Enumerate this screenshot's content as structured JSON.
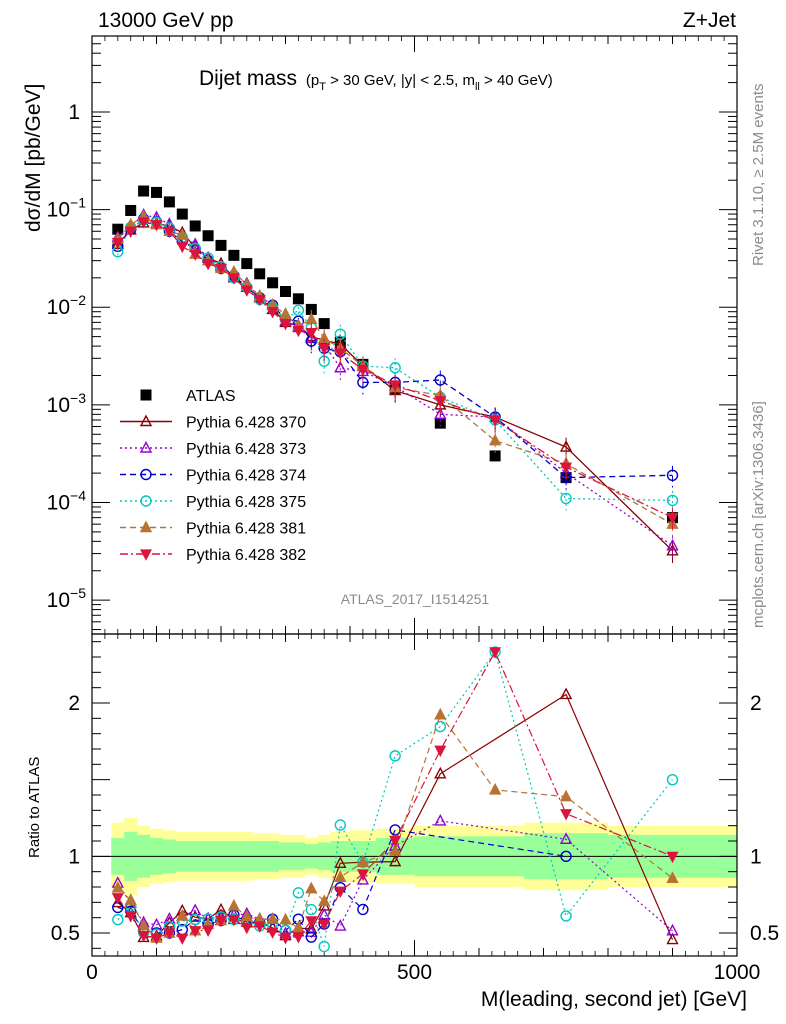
{
  "header": {
    "left": "13000 GeV pp",
    "right": "Z+Jet"
  },
  "side": {
    "rivet": "Rivet 3.1.10, ≥ 2.5M events",
    "mcplots": "mcplots.cern.ch [arXiv:1306.3436]"
  },
  "chart_data": {
    "type": "scatter",
    "title": "Dijet mass",
    "title_cuts_parts": {
      "open": "(p",
      "pt_sub": "T",
      "mid": " > 30 GeV, |y| < 2.5, m",
      "m_sub": "ll",
      "close": " > 40 GeV)"
    },
    "analysis_id": "ATLAS_2017_I1514251",
    "xlabel": "M(leading, second jet) [GeV]",
    "ylabel": "dσ/dM [pb/GeV]",
    "ratio_ylabel": "Ratio to ATLAS",
    "xlim": [
      0,
      1000
    ],
    "ylim": [
      4.5e-06,
      6
    ],
    "yscale": "log",
    "ratio_ylim": [
      0.35,
      2.45
    ],
    "x_ticks": [
      0,
      500,
      1000
    ],
    "x_tick_labels": [
      "0",
      "500",
      "1000"
    ],
    "y_ticks": [
      1e-05,
      0.0001,
      0.001,
      0.01,
      0.1,
      1
    ],
    "y_tick_labels": [
      {
        "base": "10",
        "exp": "−5"
      },
      {
        "base": "10",
        "exp": "−4"
      },
      {
        "base": "10",
        "exp": "−3"
      },
      {
        "base": "10",
        "exp": "−2"
      },
      {
        "base": "10",
        "exp": "−1"
      },
      {
        "base": "1",
        "exp": ""
      }
    ],
    "ratio_ticks": [
      0.5,
      1,
      2
    ],
    "ratio_tick_labels": [
      "0.5",
      "1",
      "2"
    ],
    "legend_position": "lower-left",
    "bins": [
      30,
      50,
      70,
      90,
      110,
      130,
      150,
      170,
      190,
      210,
      230,
      250,
      270,
      290,
      310,
      330,
      350,
      370,
      400,
      440,
      500,
      580,
      670,
      800,
      1000
    ],
    "series": [
      {
        "name": "ATLAS",
        "color": "#000000",
        "marker": "square",
        "line": "none",
        "x": [
          40,
          60,
          80,
          100,
          120,
          140,
          160,
          180,
          200,
          220,
          240,
          260,
          280,
          300,
          320,
          340,
          360,
          385,
          420,
          470,
          540,
          625,
          735,
          900
        ],
        "y": [
          0.063,
          0.098,
          0.155,
          0.15,
          0.12,
          0.09,
          0.068,
          0.054,
          0.043,
          0.034,
          0.028,
          0.022,
          0.0178,
          0.0145,
          0.0122,
          0.0095,
          0.0068,
          0.0044,
          0.0026,
          0.00145,
          0.00065,
          0.0003,
          0.00018,
          7e-05
        ],
        "band_inner": [
          0.12,
          0.16,
          0.14,
          0.12,
          0.11,
          0.1,
          0.1,
          0.1,
          0.1,
          0.1,
          0.1,
          0.1,
          0.1,
          0.09,
          0.09,
          0.08,
          0.09,
          0.1,
          0.1,
          0.12,
          0.13,
          0.13,
          0.15,
          0.14
        ],
        "band_outer": [
          0.22,
          0.25,
          0.2,
          0.18,
          0.17,
          0.16,
          0.16,
          0.16,
          0.16,
          0.16,
          0.16,
          0.15,
          0.15,
          0.14,
          0.14,
          0.12,
          0.14,
          0.16,
          0.17,
          0.18,
          0.2,
          0.2,
          0.22,
          0.2
        ]
      },
      {
        "name": "Pythia 6.428 370",
        "color": "#8b0000",
        "marker": "triangle-open",
        "line": "solid",
        "x": [
          40,
          60,
          80,
          100,
          120,
          140,
          160,
          180,
          200,
          220,
          240,
          260,
          280,
          300,
          320,
          340,
          360,
          385,
          420,
          470,
          540,
          625,
          735,
          900
        ],
        "y": [
          0.044,
          0.062,
          0.073,
          0.072,
          0.068,
          0.058,
          0.041,
          0.032,
          0.028,
          0.02,
          0.016,
          0.0125,
          0.0095,
          0.007,
          0.0065,
          0.005,
          0.0046,
          0.0042,
          0.0025,
          0.0014,
          0.001,
          0.00075,
          0.00037,
          3.2e-05
        ]
      },
      {
        "name": "Pythia 6.428 373",
        "color": "#9400d3",
        "marker": "triangle-open",
        "line": "dotted",
        "x": [
          40,
          60,
          80,
          100,
          120,
          140,
          160,
          180,
          200,
          220,
          240,
          260,
          280,
          300,
          320,
          340,
          360,
          385,
          420,
          470,
          540,
          625,
          735,
          900
        ],
        "y": [
          0.052,
          0.068,
          0.088,
          0.083,
          0.071,
          0.055,
          0.044,
          0.032,
          0.026,
          0.021,
          0.0175,
          0.013,
          0.0105,
          0.0072,
          0.0062,
          0.0048,
          0.0042,
          0.0024,
          0.0022,
          0.00155,
          0.0008,
          0.00075,
          0.0002,
          3.6e-05
        ]
      },
      {
        "name": "Pythia 6.428 374",
        "color": "#0000cd",
        "marker": "circle-open",
        "line": "dashed",
        "x": [
          40,
          60,
          80,
          100,
          120,
          140,
          160,
          180,
          200,
          220,
          240,
          260,
          280,
          300,
          320,
          340,
          360,
          385,
          420,
          470,
          540,
          625,
          735,
          900
        ],
        "y": [
          0.042,
          0.063,
          0.08,
          0.075,
          0.06,
          0.047,
          0.04,
          0.03,
          0.025,
          0.021,
          0.016,
          0.0125,
          0.0105,
          0.0075,
          0.0072,
          0.0045,
          0.0038,
          0.0035,
          0.0017,
          0.0017,
          0.0018,
          0.00075,
          0.00018,
          0.00019
        ]
      },
      {
        "name": "Pythia 6.428 375",
        "color": "#00c8c0",
        "marker": "circle-open",
        "line": "dotted",
        "x": [
          40,
          60,
          80,
          100,
          120,
          140,
          160,
          180,
          200,
          220,
          240,
          260,
          280,
          300,
          320,
          340,
          360,
          385,
          420,
          470,
          540,
          625,
          735,
          900
        ],
        "y": [
          0.037,
          0.066,
          0.078,
          0.074,
          0.065,
          0.052,
          0.04,
          0.032,
          0.026,
          0.02,
          0.016,
          0.012,
          0.01,
          0.0075,
          0.0093,
          0.0062,
          0.0028,
          0.0053,
          0.0025,
          0.0024,
          0.0012,
          0.0007,
          0.00011,
          0.000105
        ]
      },
      {
        "name": "Pythia 6.428 381",
        "color": "#b87333",
        "marker": "triangle-filled",
        "line": "dashed",
        "x": [
          40,
          60,
          80,
          100,
          120,
          140,
          160,
          180,
          200,
          220,
          240,
          260,
          280,
          300,
          320,
          340,
          360,
          385,
          420,
          470,
          540,
          625,
          735,
          900
        ],
        "y": [
          0.05,
          0.07,
          0.085,
          0.07,
          0.06,
          0.055,
          0.035,
          0.03,
          0.025,
          0.023,
          0.017,
          0.013,
          0.0105,
          0.0085,
          0.0065,
          0.0075,
          0.0048,
          0.0038,
          0.0025,
          0.0015,
          0.00125,
          0.00043,
          0.00025,
          6e-05
        ]
      },
      {
        "name": "Pythia 6.428 382",
        "color": "#dc143c",
        "marker": "triangle-down-filled",
        "line": "dashdot",
        "x": [
          40,
          60,
          80,
          100,
          120,
          140,
          160,
          180,
          200,
          220,
          240,
          260,
          280,
          300,
          320,
          340,
          360,
          385,
          420,
          470,
          540,
          625,
          735,
          900
        ],
        "y": [
          0.046,
          0.06,
          0.075,
          0.07,
          0.06,
          0.042,
          0.035,
          0.028,
          0.025,
          0.02,
          0.015,
          0.012,
          0.009,
          0.0068,
          0.0058,
          0.0055,
          0.0038,
          0.0034,
          0.0023,
          0.0016,
          0.0011,
          0.0007,
          0.00023,
          7e-05
        ]
      }
    ]
  }
}
